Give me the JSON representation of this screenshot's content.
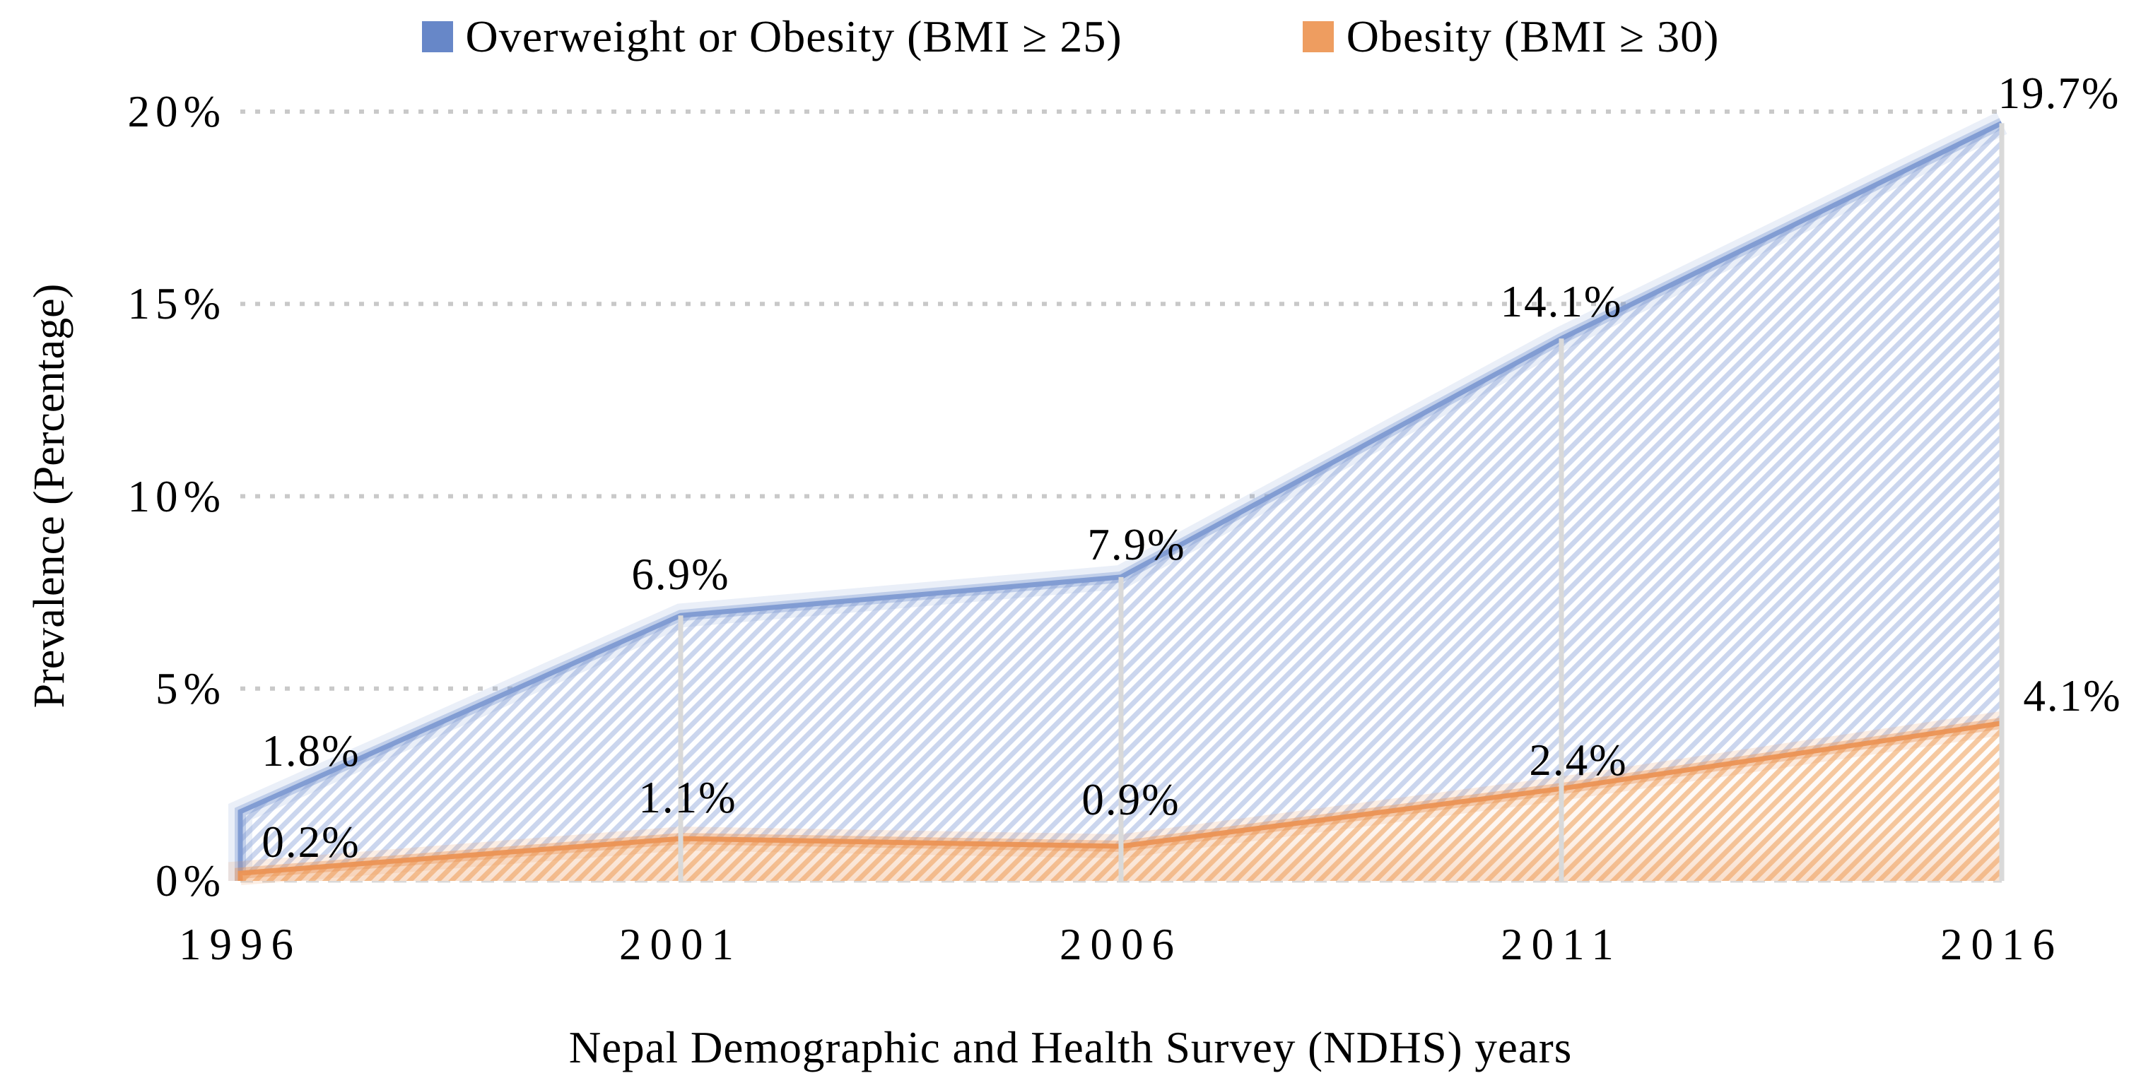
{
  "legend": {
    "items": [
      {
        "label": "Overweight or Obesity (BMI ≥ 25)",
        "swatch_color": "#6787C8"
      },
      {
        "label": "Obesity (BMI ≥ 30)",
        "swatch_color": "#EE9D60"
      }
    ]
  },
  "y_axis": {
    "title": "Prevalence (Percentage)",
    "tick_labels": [
      "0%",
      "5%",
      "10%",
      "15%",
      "20%"
    ],
    "tick_values": [
      0,
      5,
      10,
      15,
      20
    ]
  },
  "x_axis": {
    "title": "Nepal Demographic and Health Survey (NDHS) years",
    "tick_labels": [
      "1996",
      "2001",
      "2006",
      "2011",
      "2016"
    ]
  },
  "chart_data": {
    "type": "area",
    "x": [
      1996,
      2001,
      2006,
      2011,
      2016
    ],
    "series": [
      {
        "name": "Overweight or Obesity (BMI ≥ 25)",
        "values": [
          1.8,
          6.9,
          7.9,
          14.1,
          19.7
        ],
        "point_labels": [
          "1.8%",
          "6.9%",
          "7.9%",
          "14.1%",
          "19.7%"
        ],
        "stripe_color": "#CBD6EE",
        "edge_color": "#7E9AD2",
        "fill_style": "diagonal-hatch"
      },
      {
        "name": "Obesity (BMI ≥ 30)",
        "values": [
          0.2,
          1.1,
          0.9,
          2.4,
          4.1
        ],
        "point_labels": [
          "0.2%",
          "1.1%",
          "0.9%",
          "2.4%",
          "4.1%"
        ],
        "stripe_color": "#F6CAA2",
        "edge_color": "#EB9455",
        "fill_style": "diagonal-hatch"
      }
    ],
    "title": "",
    "xlabel": "Nepal Demographic and Health Survey (NDHS) years",
    "ylabel": "Prevalence (Percentage)",
    "ylim": [
      0,
      20
    ],
    "grid": "dotted horizontal gridlines at 5, 10, 15, 20; dashed baseline at 0",
    "gridline_color": "#C9C9C9",
    "baseline_color": "#D9D9D9",
    "dropline_color": "#D9D9D9",
    "legend_position": "top",
    "overlap": "both series drawn from zero baseline (not stacked), obesity in front"
  }
}
